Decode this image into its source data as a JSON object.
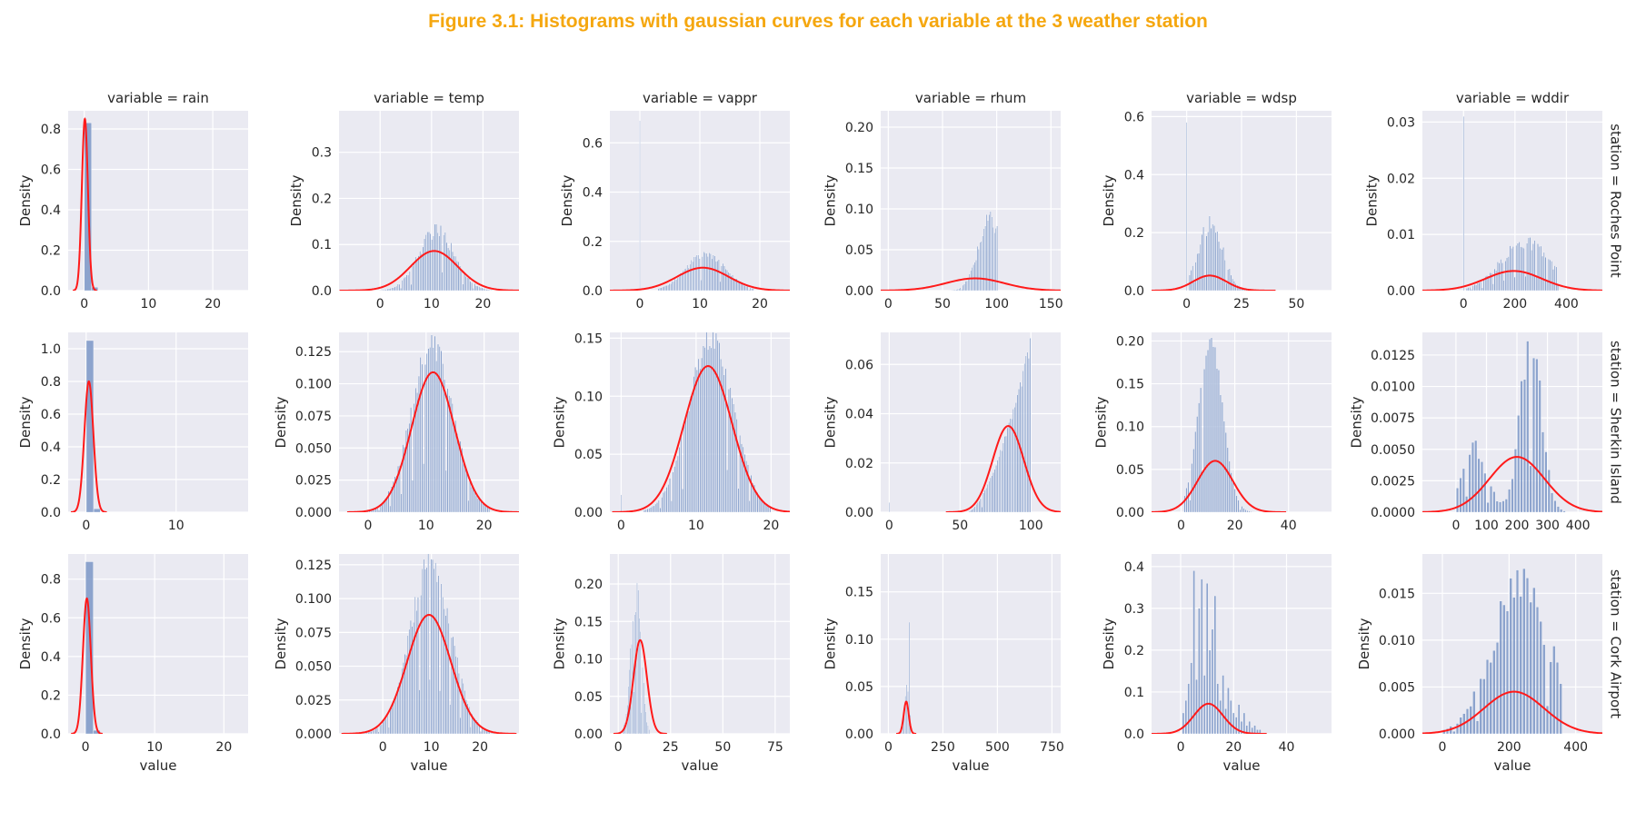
{
  "figure": {
    "title": "Figure 3.1: Histograms with gaussian curves for each variable at the 3 weather station",
    "title_color": "#f5a70f"
  },
  "style": {
    "panel_bg": "#eaeaf2",
    "grid_color": "#ffffff",
    "bar_color": "#7b96c7",
    "curve_color": "#ff1a1a",
    "text_color": "#262626"
  },
  "chart_data": {
    "type": "histogram-grid",
    "x_label": "value",
    "y_label": "Density",
    "columns": [
      "variable = rain",
      "variable = temp",
      "variable = vappr",
      "variable = rhum",
      "variable = wdsp",
      "variable = wddir"
    ],
    "rows": [
      "station = Roches Point",
      "station = Sherkin Island",
      "station = Cork Airport"
    ],
    "panels": [
      {
        "row": 0,
        "col": 0,
        "xlim": [
          -2.5,
          25.5
        ],
        "ylim": [
          0,
          0.89
        ],
        "xticks": [
          0,
          10,
          20
        ],
        "yticks": [
          0.0,
          0.2,
          0.4,
          0.6,
          0.8
        ],
        "ytick_labels": [
          "0.0",
          "0.2",
          "0.4",
          "0.6",
          "0.8"
        ],
        "hist": {
          "kind": "rain",
          "peak": 0.83,
          "width": 1.1
        },
        "gauss": {
          "mean": 0.1,
          "sd": 0.47,
          "peak": 0.85
        }
      },
      {
        "row": 0,
        "col": 1,
        "xlim": [
          -8,
          27
        ],
        "ylim": [
          0,
          0.39
        ],
        "xticks": [
          0,
          10,
          20
        ],
        "yticks": [
          0.0,
          0.1,
          0.2,
          0.3
        ],
        "ytick_labels": [
          "0.0",
          "0.1",
          "0.2",
          "0.3"
        ],
        "hist": {
          "kind": "bell",
          "mean": 11,
          "sd": 3.5,
          "peak": 0.13,
          "lo": -1,
          "hi": 22,
          "n": 80,
          "jitter": 0.25
        },
        "gauss": {
          "mean": 10.5,
          "sd": 4.6,
          "peak": 0.086
        }
      },
      {
        "row": 0,
        "col": 2,
        "xlim": [
          -5,
          25
        ],
        "ylim": [
          0,
          0.73
        ],
        "xticks": [
          0,
          10,
          20
        ],
        "yticks": [
          0.0,
          0.2,
          0.4,
          0.6
        ],
        "ytick_labels": [
          "0.0",
          "0.2",
          "0.4",
          "0.6"
        ],
        "hist": {
          "kind": "bell",
          "mean": 11,
          "sd": 3.3,
          "peak": 0.15,
          "lo": 3,
          "hi": 19,
          "n": 70,
          "jitter": 0.2,
          "spike": {
            "x": 0,
            "h": 0.69
          }
        },
        "gauss": {
          "mean": 10.5,
          "sd": 4.3,
          "peak": 0.093
        }
      },
      {
        "row": 0,
        "col": 3,
        "xlim": [
          -7,
          159
        ],
        "ylim": [
          0,
          0.22
        ],
        "xticks": [
          0,
          50,
          100,
          150
        ],
        "yticks": [
          0.0,
          0.05,
          0.1,
          0.15,
          0.2
        ],
        "ytick_labels": [
          "0.00",
          "0.05",
          "0.10",
          "0.15",
          "0.20"
        ],
        "hist": {
          "kind": "bell",
          "mean": 94,
          "sd": 11,
          "peak": 0.085,
          "lo": 55,
          "hi": 101,
          "n": 38,
          "jitter": 0.3
        },
        "gauss": {
          "mean": 80,
          "sd": 27,
          "peak": 0.015
        }
      },
      {
        "row": 0,
        "col": 4,
        "xlim": [
          -16,
          66
        ],
        "ylim": [
          0,
          0.62
        ],
        "xticks": [
          0,
          25,
          50
        ],
        "yticks": [
          0.0,
          0.2,
          0.4,
          0.6
        ],
        "ytick_labels": [
          "0.0",
          "0.2",
          "0.4",
          "0.6"
        ],
        "hist": {
          "kind": "bell",
          "mean": 11,
          "sd": 5.5,
          "peak": 0.23,
          "lo": 1,
          "hi": 36,
          "n": 50,
          "jitter": 0.35,
          "spike": {
            "x": 0,
            "h": 0.58
          }
        },
        "gauss": {
          "mean": 10.5,
          "sd": 7.5,
          "peak": 0.052
        }
      },
      {
        "row": 0,
        "col": 5,
        "xlim": [
          -160,
          540
        ],
        "ylim": [
          0,
          0.032
        ],
        "xticks": [
          0,
          200,
          400
        ],
        "yticks": [
          0.0,
          0.01,
          0.02,
          0.03
        ],
        "ytick_labels": [
          "0.00",
          "0.01",
          "0.02",
          "0.03"
        ],
        "hist": {
          "kind": "bell",
          "mean": 240,
          "sd": 95,
          "peak": 0.0085,
          "lo": 10,
          "hi": 370,
          "n": 60,
          "jitter": 0.3,
          "spike": {
            "x": 0,
            "h": 0.031
          }
        },
        "gauss": {
          "mean": 195,
          "sd": 110,
          "peak": 0.0035
        }
      },
      {
        "row": 1,
        "col": 0,
        "xlim": [
          -2,
          18
        ],
        "ylim": [
          0,
          1.1
        ],
        "xticks": [
          0,
          10
        ],
        "yticks": [
          0.0,
          0.2,
          0.4,
          0.6,
          0.8,
          1.0
        ],
        "ytick_labels": [
          "0.0",
          "0.2",
          "0.4",
          "0.6",
          "0.8",
          "1.0"
        ],
        "hist": {
          "kind": "rain",
          "peak": 1.05,
          "width": 0.8
        },
        "gauss": {
          "mean": 0.3,
          "sd": 0.5,
          "peak": 0.8
        }
      },
      {
        "row": 1,
        "col": 1,
        "xlim": [
          -5,
          26
        ],
        "ylim": [
          0,
          0.14
        ],
        "xticks": [
          0,
          10,
          20
        ],
        "yticks": [
          0.0,
          0.025,
          0.05,
          0.075,
          0.1,
          0.125
        ],
        "ytick_labels": [
          "0.000",
          "0.025",
          "0.050",
          "0.075",
          "0.100",
          "0.125"
        ],
        "hist": {
          "kind": "bell",
          "mean": 11,
          "sd": 3.6,
          "peak": 0.13,
          "lo": -1,
          "hi": 21,
          "n": 80,
          "jitter": 0.18
        },
        "gauss": {
          "mean": 11.2,
          "sd": 3.7,
          "peak": 0.109
        }
      },
      {
        "row": 1,
        "col": 2,
        "xlim": [
          -1.5,
          22.5
        ],
        "ylim": [
          0,
          0.155
        ],
        "xticks": [
          0,
          10,
          20
        ],
        "yticks": [
          0.0,
          0.05,
          0.1,
          0.15
        ],
        "ytick_labels": [
          "0.00",
          "0.05",
          "0.10",
          "0.15"
        ],
        "hist": {
          "kind": "bell",
          "mean": 12,
          "sd": 3.0,
          "peak": 0.15,
          "lo": 3,
          "hi": 20,
          "n": 80,
          "jitter": 0.15,
          "spike": {
            "x": 0,
            "h": 0.015
          }
        },
        "gauss": {
          "mean": 11.6,
          "sd": 3.2,
          "peak": 0.126
        }
      },
      {
        "row": 1,
        "col": 3,
        "xlim": [
          -6,
          121
        ],
        "ylim": [
          0,
          0.073
        ],
        "xticks": [
          0,
          50,
          100
        ],
        "yticks": [
          0.0,
          0.02,
          0.04,
          0.06
        ],
        "ytick_labels": [
          "0.00",
          "0.02",
          "0.04",
          "0.06"
        ],
        "hist": {
          "kind": "ramp",
          "lo": 55,
          "hi": 100,
          "peak": 0.069,
          "n": 45,
          "jitter": 0.1,
          "spike": {
            "x": 0,
            "h": 0.004
          }
        },
        "gauss": {
          "mean": 84,
          "sd": 11,
          "peak": 0.035
        }
      },
      {
        "row": 1,
        "col": 4,
        "xlim": [
          -11,
          56
        ],
        "ylim": [
          0,
          0.21
        ],
        "xticks": [
          0,
          20,
          40
        ],
        "yticks": [
          0.0,
          0.05,
          0.1,
          0.15,
          0.2
        ],
        "ytick_labels": [
          "0.00",
          "0.05",
          "0.10",
          "0.15",
          "0.20"
        ],
        "hist": {
          "kind": "bell",
          "mean": 11,
          "sd": 4.5,
          "peak": 0.2,
          "lo": 1,
          "hi": 33,
          "n": 48,
          "jitter": 0.1
        },
        "gauss": {
          "mean": 12.7,
          "sd": 6.6,
          "peak": 0.06
        }
      },
      {
        "row": 1,
        "col": 5,
        "xlim": [
          -110,
          480
        ],
        "ylim": [
          0,
          0.0143
        ],
        "xticks": [
          0,
          100,
          200,
          300,
          400
        ],
        "yticks": [
          0.0,
          0.0025,
          0.005,
          0.0075,
          0.01,
          0.0125
        ],
        "ytick_labels": [
          "0.0000",
          "0.0025",
          "0.0050",
          "0.0075",
          "0.0100",
          "0.0125"
        ],
        "hist": {
          "kind": "bimodal",
          "lo": 0,
          "hi": 360,
          "n": 36,
          "jitter": 0.3,
          "modes": [
            {
              "mean": 60,
              "sd": 40,
              "peak": 0.0052
            },
            {
              "mean": 245,
              "sd": 35,
              "peak": 0.0133
            }
          ]
        },
        "gauss": {
          "mean": 200,
          "sd": 90,
          "peak": 0.0044
        }
      },
      {
        "row": 2,
        "col": 0,
        "xlim": [
          -2.5,
          23.5
        ],
        "ylim": [
          0,
          0.93
        ],
        "xticks": [
          0,
          10,
          20
        ],
        "yticks": [
          0.0,
          0.2,
          0.4,
          0.6,
          0.8
        ],
        "ytick_labels": [
          "0.0",
          "0.2",
          "0.4",
          "0.6",
          "0.8"
        ],
        "hist": {
          "kind": "rain",
          "peak": 0.89,
          "width": 1.1
        },
        "gauss": {
          "mean": 0.2,
          "sd": 0.57,
          "peak": 0.7
        }
      },
      {
        "row": 2,
        "col": 1,
        "xlim": [
          -9,
          28
        ],
        "ylim": [
          0,
          0.133
        ],
        "xticks": [
          0,
          10,
          20
        ],
        "yticks": [
          0.0,
          0.025,
          0.05,
          0.075,
          0.1,
          0.125
        ],
        "ytick_labels": [
          "0.000",
          "0.025",
          "0.050",
          "0.075",
          "0.100",
          "0.125"
        ],
        "hist": {
          "kind": "bell",
          "mean": 9.8,
          "sd": 4.2,
          "peak": 0.125,
          "lo": -4,
          "hi": 23,
          "n": 90,
          "jitter": 0.18
        },
        "gauss": {
          "mean": 9.5,
          "sd": 4.5,
          "peak": 0.088
        }
      },
      {
        "row": 2,
        "col": 2,
        "xlim": [
          -4,
          82
        ],
        "ylim": [
          0,
          0.24
        ],
        "xticks": [
          0,
          25,
          50,
          75
        ],
        "yticks": [
          0.0,
          0.05,
          0.1,
          0.15,
          0.2
        ],
        "ytick_labels": [
          "0.00",
          "0.05",
          "0.10",
          "0.15",
          "0.20"
        ],
        "hist": {
          "kind": "bell",
          "mean": 8.5,
          "sd": 2.4,
          "peak": 0.19,
          "lo": 2,
          "hi": 15,
          "n": 25,
          "jitter": 0.3
        },
        "gauss": {
          "mean": 10.5,
          "sd": 3.2,
          "peak": 0.125
        }
      },
      {
        "row": 2,
        "col": 3,
        "xlim": [
          -35,
          790
        ],
        "ylim": [
          0,
          0.19
        ],
        "xticks": [
          0,
          250,
          500,
          750
        ],
        "yticks": [
          0.0,
          0.05,
          0.1,
          0.15
        ],
        "ytick_labels": [
          "0.00",
          "0.05",
          "0.10",
          "0.15"
        ],
        "hist": {
          "kind": "bars",
          "xs": [
            60,
            66,
            72,
            78,
            84,
            90,
            96,
            100
          ],
          "hs": [
            0.008,
            0.015,
            0.028,
            0.04,
            0.052,
            0.045,
            0.118,
            0.02
          ],
          "w": 4
        },
        "gauss": {
          "mean": 82,
          "sd": 11.5,
          "peak": 0.034
        }
      },
      {
        "row": 2,
        "col": 4,
        "xlim": [
          -11,
          57
        ],
        "ylim": [
          0,
          0.43
        ],
        "xticks": [
          0,
          20,
          40
        ],
        "yticks": [
          0.0,
          0.1,
          0.2,
          0.3,
          0.4
        ],
        "ytick_labels": [
          "0.0",
          "0.1",
          "0.2",
          "0.3",
          "0.4"
        ],
        "hist": {
          "kind": "bars",
          "xs": [
            1,
            2,
            3,
            4,
            5,
            6,
            7,
            8,
            9,
            10,
            11,
            12,
            13,
            14,
            15,
            16,
            17,
            18,
            19,
            20,
            21,
            22,
            23,
            24,
            25,
            26,
            27,
            28,
            29,
            30
          ],
          "hs": [
            0.05,
            0.08,
            0.12,
            0.17,
            0.39,
            0.13,
            0.3,
            0.37,
            0.14,
            0.36,
            0.2,
            0.25,
            0.33,
            0.12,
            0.08,
            0.14,
            0.06,
            0.11,
            0.08,
            0.05,
            0.04,
            0.07,
            0.03,
            0.05,
            0.02,
            0.03,
            0.015,
            0.02,
            0.01,
            0.01
          ],
          "w": 0.7
        },
        "gauss": {
          "mean": 10.5,
          "sd": 5.5,
          "peak": 0.072
        }
      },
      {
        "row": 2,
        "col": 5,
        "xlim": [
          -60,
          480
        ],
        "ylim": [
          0,
          0.0192
        ],
        "xticks": [
          0,
          200,
          400
        ],
        "yticks": [
          0.0,
          0.005,
          0.01,
          0.015
        ],
        "ytick_labels": [
          "0.000",
          "0.005",
          "0.010",
          "0.015"
        ],
        "hist": {
          "kind": "bell",
          "mean": 235,
          "sd": 85,
          "peak": 0.016,
          "lo": 0,
          "hi": 360,
          "n": 36,
          "jitter": 0.35
        },
        "gauss": {
          "mean": 215,
          "sd": 90,
          "peak": 0.0045
        }
      }
    ]
  }
}
